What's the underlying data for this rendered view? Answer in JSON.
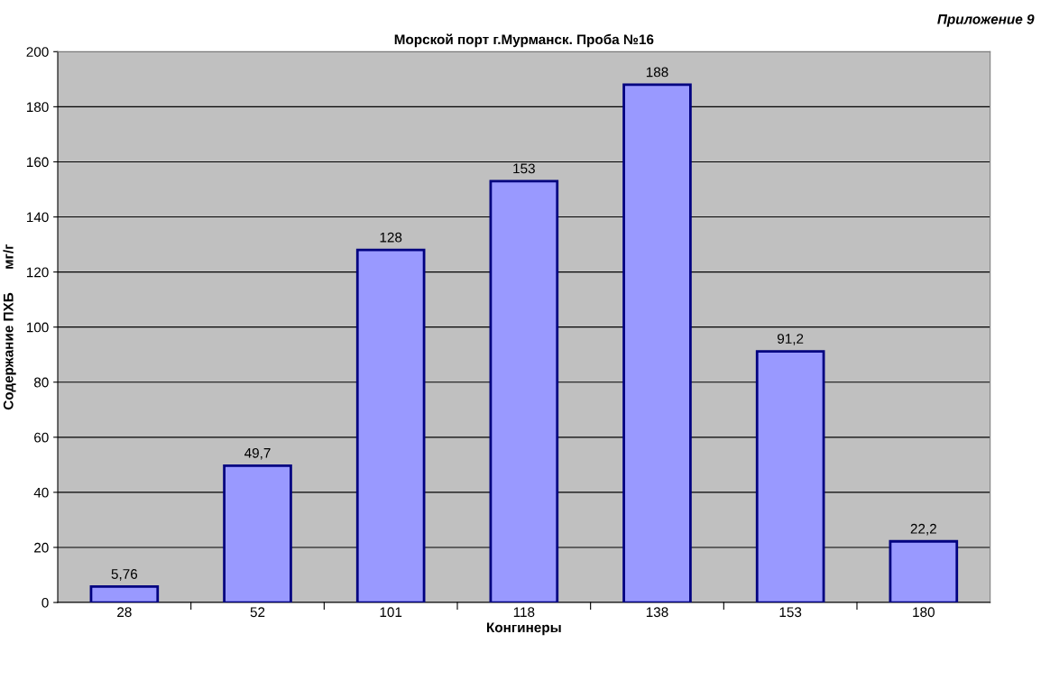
{
  "chart_data": {
    "type": "bar",
    "title": "Морской порт г.Мурманск. Проба №16",
    "xlabel": "Конгинеры",
    "ylabel": "Содержание ПХБ      мг/г",
    "annotations": [
      "Приложение 9"
    ],
    "categories": [
      "28",
      "52",
      "101",
      "118",
      "138",
      "153",
      "180"
    ],
    "values": [
      5.76,
      49.7,
      128,
      153,
      188,
      91.2,
      22.2
    ],
    "value_labels": [
      "5,76",
      "49,7",
      "128",
      "153",
      "188",
      "91,2",
      "22,2"
    ],
    "color": "#9999ff",
    "ylim": [
      0,
      200
    ],
    "yticks": [
      0,
      20,
      40,
      60,
      80,
      100,
      120,
      140,
      160,
      180,
      200
    ],
    "grid": "y",
    "legend": false
  }
}
